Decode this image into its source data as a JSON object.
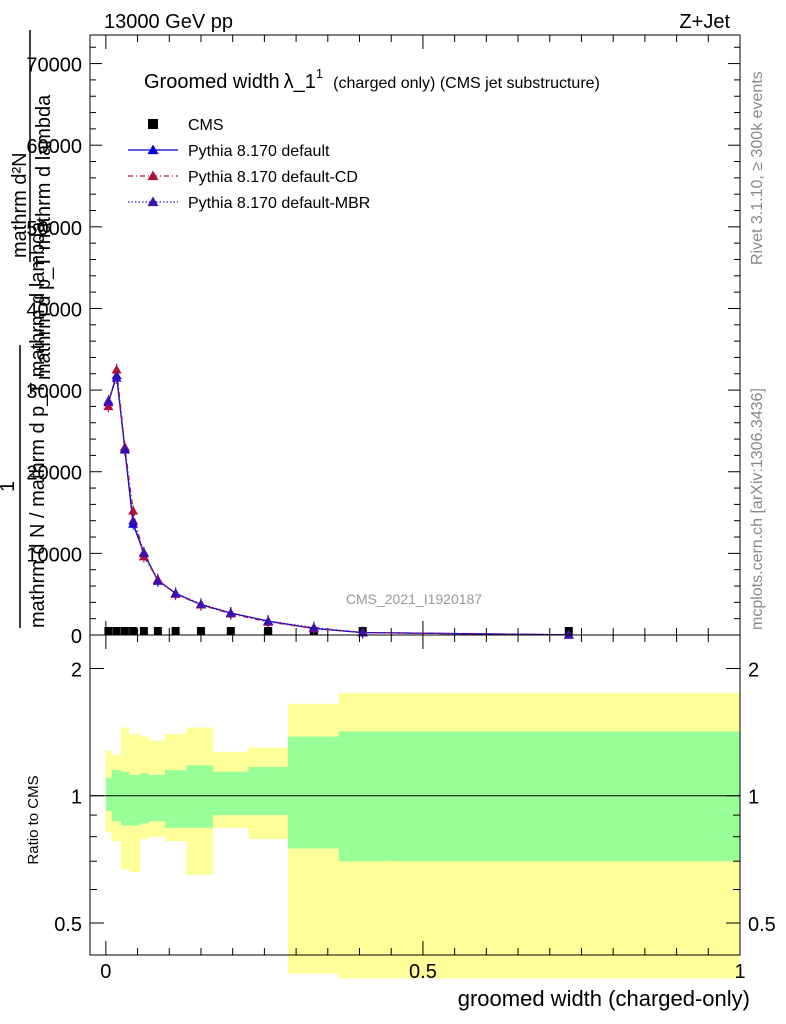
{
  "header": {
    "left": "13000 GeV pp",
    "right": "Z+Jet"
  },
  "side": {
    "rivet": "Rivet 3.1.10, ≥ 300k events",
    "mcplots": "mcplots.cern.ch [arXiv:1306.3436]"
  },
  "main": {
    "title": "Groomed width",
    "title_lambda": "λ_1",
    "title_sup": "1",
    "title_suffix": "(charged only) (CMS jet substructure)",
    "ylabel_top": "mathrm d²N",
    "ylabel_mid": "mathrm d p_T mathrm d lambda",
    "ylabel_one": "1",
    "ylabel_bottom": "mathrm d N / mathrm d p_T mathrm d lambda",
    "watermark": "CMS_2021_I1920187",
    "y_ticks": [
      "0",
      "10000",
      "20000",
      "30000",
      "40000",
      "50000",
      "60000",
      "70000"
    ],
    "legend": [
      {
        "label": "CMS",
        "color": "#000000"
      },
      {
        "label": "Pythia 8.170 default",
        "color": "#0000dd"
      },
      {
        "label": "Pythia 8.170 default-CD",
        "color": "#b4103a"
      },
      {
        "label": "Pythia 8.170 default-MBR",
        "color": "#3a10b4"
      }
    ]
  },
  "ratio": {
    "ylabel": "Ratio to CMS",
    "y_ticks": [
      "0.5",
      "1",
      "2"
    ]
  },
  "xaxis": {
    "label": "groomed width (charged-only)",
    "ticks": [
      "0",
      "0.5",
      "1"
    ]
  },
  "chart_data": {
    "type": "line",
    "x": [
      0.004,
      0.017,
      0.03,
      0.043,
      0.06,
      0.082,
      0.11,
      0.15,
      0.197,
      0.256,
      0.328,
      0.405,
      0.73
    ],
    "series": [
      {
        "name": "CMS",
        "values": [
          0,
          0,
          0,
          0,
          0,
          0,
          0,
          0,
          0,
          0,
          0,
          0,
          0
        ]
      },
      {
        "name": "Pythia 8.170 default",
        "values": [
          28500,
          31800,
          22700,
          13600,
          10000,
          6700,
          5100,
          3700,
          2700,
          1700,
          800,
          300,
          20
        ]
      },
      {
        "name": "Pythia 8.170 default-CD",
        "values": [
          28000,
          32500,
          23000,
          15200,
          9600,
          6800,
          5000,
          3700,
          2600,
          1600,
          800,
          300,
          20
        ]
      },
      {
        "name": "Pythia 8.170 default-MBR",
        "values": [
          28700,
          31500,
          22800,
          14000,
          10100,
          6600,
          5100,
          3800,
          2700,
          1700,
          900,
          300,
          20
        ]
      }
    ],
    "ylim": [
      0,
      73500
    ],
    "xlim": [
      -0.025,
      1.0
    ],
    "ratio_bands": {
      "edges": [
        0,
        0.009,
        0.024,
        0.037,
        0.054,
        0.068,
        0.093,
        0.127,
        0.169,
        0.225,
        0.287,
        0.367,
        0.45,
        1.0
      ],
      "green": [
        [
          0.92,
          1.1
        ],
        [
          0.87,
          1.15
        ],
        [
          0.85,
          1.14
        ],
        [
          0.85,
          1.12
        ],
        [
          0.86,
          1.13
        ],
        [
          0.87,
          1.12
        ],
        [
          0.84,
          1.15
        ],
        [
          0.84,
          1.18
        ],
        [
          0.9,
          1.14
        ],
        [
          0.9,
          1.17
        ],
        [
          0.75,
          1.38
        ],
        [
          0.7,
          1.42
        ],
        [
          0.7,
          1.42
        ]
      ],
      "yellow": [
        [
          0.82,
          1.28
        ],
        [
          0.78,
          1.25
        ],
        [
          0.67,
          1.45
        ],
        [
          0.66,
          1.4
        ],
        [
          0.79,
          1.38
        ],
        [
          0.8,
          1.35
        ],
        [
          0.78,
          1.4
        ],
        [
          0.65,
          1.45
        ],
        [
          0.84,
          1.27
        ],
        [
          0.79,
          1.3
        ],
        [
          0.38,
          1.65
        ],
        [
          0.37,
          1.75
        ],
        [
          0.37,
          1.75
        ]
      ]
    },
    "ratio_ylim": [
      0.42,
      2.4
    ]
  }
}
